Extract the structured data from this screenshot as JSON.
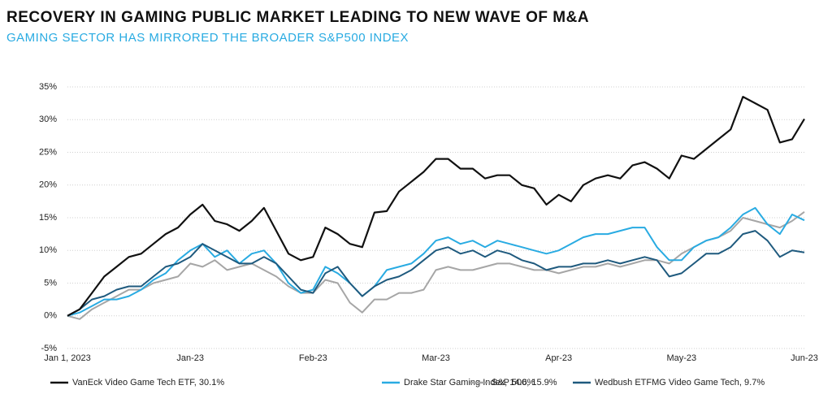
{
  "chart_data": {
    "type": "line",
    "title": "RECOVERY IN GAMING PUBLIC MARKET LEADING TO NEW WAVE OF M&A",
    "subtitle": "GAMING SECTOR HAS MIRRORED THE BROADER S&P500 INDEX",
    "categories": [
      "Jan 1, 2023",
      null,
      null,
      null,
      null,
      null,
      null,
      null,
      null,
      null,
      "Jan-23",
      null,
      null,
      null,
      null,
      null,
      null,
      null,
      null,
      null,
      "Feb-23",
      null,
      null,
      null,
      null,
      null,
      null,
      null,
      null,
      null,
      "Mar-23",
      null,
      null,
      null,
      null,
      null,
      null,
      null,
      null,
      null,
      "Apr-23",
      null,
      null,
      null,
      null,
      null,
      null,
      null,
      null,
      null,
      "May-23",
      null,
      null,
      null,
      null,
      null,
      null,
      null,
      null,
      null,
      "Jun-23"
    ],
    "series": [
      {
        "name": "VanEck Video Game Tech ETF, 30.1%",
        "color": "#111111",
        "values": [
          0,
          1,
          3.5,
          6,
          7.5,
          9,
          9.5,
          11,
          12.5,
          13.5,
          15.5,
          17,
          14.5,
          14,
          13,
          14.5,
          16.5,
          13,
          9.5,
          8.5,
          9,
          13.5,
          12.5,
          11,
          10.5,
          15.8,
          16,
          19,
          20.5,
          22,
          24,
          24,
          22.5,
          22.5,
          21,
          21.5,
          21.5,
          20,
          19.5,
          17,
          18.5,
          17.5,
          20,
          21,
          21.5,
          21,
          23,
          23.5,
          22.5,
          21,
          24.5,
          24,
          25.5,
          27,
          28.5,
          33.5,
          32.5,
          31.5,
          26.5,
          27,
          30.1
        ]
      },
      {
        "name": "Drake Star Gaming Index, 14.6%",
        "color": "#29abe2",
        "values": [
          0,
          0.5,
          1.5,
          2.5,
          2.5,
          3,
          4,
          5.5,
          6.5,
          8.5,
          10,
          11,
          9,
          10,
          8,
          9.5,
          10,
          8,
          5,
          3.5,
          4,
          7.5,
          6.5,
          5,
          3,
          4.5,
          7,
          7.5,
          8,
          9.5,
          11.5,
          12,
          11,
          11.5,
          10.5,
          11.5,
          11,
          10.5,
          10,
          9.5,
          10,
          11,
          12,
          12.5,
          12.5,
          13,
          13.5,
          13.5,
          10.5,
          8.5,
          8.5,
          10.5,
          11.5,
          12,
          13.5,
          15.5,
          16.5,
          14,
          12.5,
          15.5,
          14.6
        ]
      },
      {
        "name": "S&P 500, 15.9%",
        "color": "#a6a6a6",
        "values": [
          0,
          -0.5,
          1,
          2,
          3,
          4,
          4,
          5,
          5.5,
          6,
          8,
          7.5,
          8.5,
          7,
          7.5,
          8,
          7,
          6,
          4.5,
          3.5,
          3.5,
          5.5,
          5,
          2,
          0.5,
          2.5,
          2.5,
          3.5,
          3.5,
          4,
          7,
          7.5,
          7,
          7,
          7.5,
          8,
          8,
          7.5,
          7,
          7,
          6.5,
          7,
          7.5,
          7.5,
          8,
          7.5,
          8,
          8.5,
          8.5,
          8,
          9.5,
          10.5,
          11.5,
          12,
          13,
          15,
          14.5,
          14,
          13.5,
          14.5,
          15.9
        ]
      },
      {
        "name": "Wedbush ETFMG Video Game Tech, 9.7%",
        "color": "#1f5a7e",
        "values": [
          0,
          1,
          2.5,
          3,
          4,
          4.5,
          4.5,
          6,
          7.5,
          8,
          9,
          11,
          10,
          9,
          8,
          8,
          9,
          8,
          6,
          4,
          3.5,
          6.5,
          7.5,
          5,
          3,
          4.5,
          5.5,
          6,
          7,
          8.5,
          10,
          10.5,
          9.5,
          10,
          9,
          10,
          9.5,
          8.5,
          8,
          7,
          7.5,
          7.5,
          8,
          8,
          8.5,
          8,
          8.5,
          9,
          8.5,
          6,
          6.5,
          8,
          9.5,
          9.5,
          10.5,
          12.5,
          13,
          11.5,
          9,
          10,
          9.7
        ]
      }
    ],
    "ylim": [
      -5,
      35
    ],
    "yticks": [
      {
        "value": -5,
        "label": "-5%"
      },
      {
        "value": 0,
        "label": "0%"
      },
      {
        "value": 5,
        "label": "5%"
      },
      {
        "value": 10,
        "label": "10%"
      },
      {
        "value": 15,
        "label": "15%"
      },
      {
        "value": 20,
        "label": "20%"
      },
      {
        "value": 25,
        "label": "25%"
      },
      {
        "value": 30,
        "label": "30%"
      },
      {
        "value": 35,
        "label": "35%"
      }
    ],
    "grid": true
  }
}
